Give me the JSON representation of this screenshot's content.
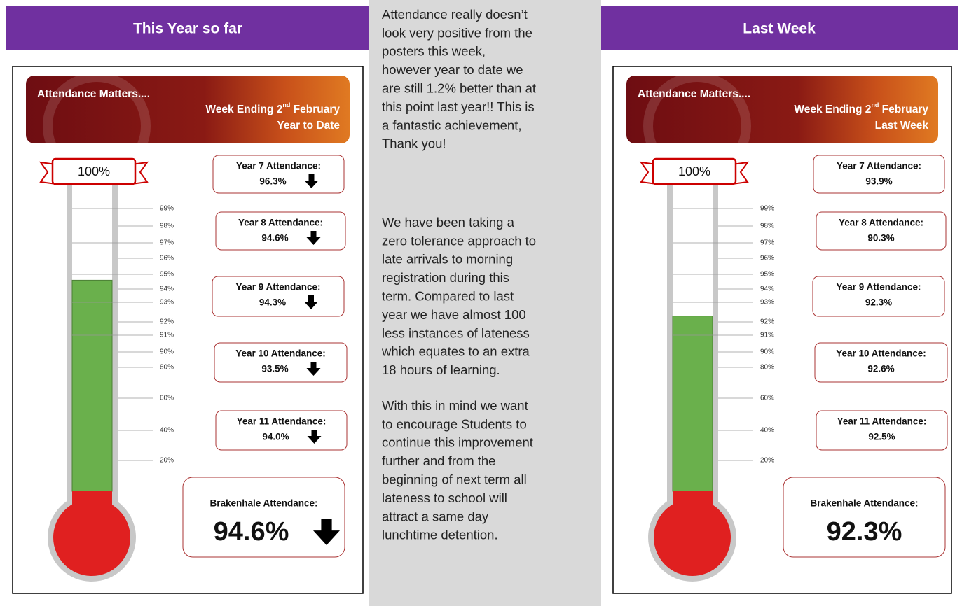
{
  "left_header": "This Year so far",
  "right_header": "Last Week",
  "article": {
    "paragraphs": [
      [
        "Attendance really doesn’t",
        "look very positive from the",
        "posters this week,",
        "however year to date we",
        "are still 1.2% better than at",
        "this point last year!!  This is",
        "a fantastic achievement,",
        "Thank you!"
      ],
      [
        "We have been taking a",
        "zero tolerance approach to",
        "late arrivals to morning",
        "registration during this",
        "term. Compared to last",
        "year we have almost 100",
        "less instances of lateness",
        "which equates to an extra",
        "18 hours of learning."
      ],
      [
        "With this in mind we want",
        "to encourage Students to",
        "continue this improvement",
        "further and from the",
        "beginning of next term all",
        "lateness to school will",
        "attract a same day",
        "lunchtime detention."
      ]
    ]
  },
  "posters": [
    {
      "banner": {
        "title": "Attendance Matters....",
        "week_ending": {
          "prefix": "Week Ending 2",
          "sup": "nd",
          "suffix": " February"
        },
        "period": "Year to Date"
      },
      "thermometer": {
        "top_label": "100%",
        "ticks": [
          {
            "value": 99,
            "label": "99%"
          },
          {
            "value": 98,
            "label": "98%"
          },
          {
            "value": 97,
            "label": "97%"
          },
          {
            "value": 96,
            "label": "96%"
          },
          {
            "value": 95,
            "label": "95%"
          },
          {
            "value": 94,
            "label": "94%"
          },
          {
            "value": 93,
            "label": "93%"
          },
          {
            "value": 92,
            "label": "92%"
          },
          {
            "value": 91,
            "label": "91%"
          },
          {
            "value": 90,
            "label": "90%"
          },
          {
            "value": 80,
            "label": "80%"
          },
          {
            "value": 60,
            "label": "60%"
          },
          {
            "value": 40,
            "label": "40%"
          },
          {
            "value": 20,
            "label": "20%"
          }
        ]
      },
      "arrows": true,
      "years": [
        {
          "label": "Year 7 Attendance:",
          "value": 96.3,
          "value_label": "96.3%"
        },
        {
          "label": "Year 8 Attendance:",
          "value": 94.6,
          "value_label": "94.6%"
        },
        {
          "label": "Year 9 Attendance:",
          "value": 94.3,
          "value_label": "94.3%"
        },
        {
          "label": "Year 10 Attendance:",
          "value": 93.5,
          "value_label": "93.5%"
        },
        {
          "label": "Year 11 Attendance:",
          "value": 94.0,
          "value_label": "94.0%"
        }
      ],
      "overall": {
        "label": "Brakenhale Attendance:",
        "value": 94.6,
        "value_label": "94.6%"
      }
    },
    {
      "banner": {
        "title": "Attendance Matters....",
        "week_ending": {
          "prefix": "Week Ending 2",
          "sup": "nd",
          "suffix": " February"
        },
        "period": "Last Week"
      },
      "thermometer": {
        "top_label": "100%",
        "ticks": [
          {
            "value": 99,
            "label": "99%"
          },
          {
            "value": 98,
            "label": "98%"
          },
          {
            "value": 97,
            "label": "97%"
          },
          {
            "value": 96,
            "label": "96%"
          },
          {
            "value": 95,
            "label": "95%"
          },
          {
            "value": 94,
            "label": "94%"
          },
          {
            "value": 93,
            "label": "93%"
          },
          {
            "value": 92,
            "label": "92%"
          },
          {
            "value": 91,
            "label": "91%"
          },
          {
            "value": 90,
            "label": "90%"
          },
          {
            "value": 80,
            "label": "80%"
          },
          {
            "value": 60,
            "label": "60%"
          },
          {
            "value": 40,
            "label": "40%"
          },
          {
            "value": 20,
            "label": "20%"
          }
        ]
      },
      "arrows": false,
      "years": [
        {
          "label": "Year 7 Attendance:",
          "value": 93.9,
          "value_label": "93.9%"
        },
        {
          "label": "Year 8 Attendance:",
          "value": 90.3,
          "value_label": "90.3%"
        },
        {
          "label": "Year 9 Attendance:",
          "value": 92.3,
          "value_label": "92.3%"
        },
        {
          "label": "Year 10 Attendance:",
          "value": 92.6,
          "value_label": "92.6%"
        },
        {
          "label": "Year 11 Attendance:",
          "value": 92.5,
          "value_label": "92.5%"
        }
      ],
      "overall": {
        "label": "Brakenhale Attendance:",
        "value": 92.3,
        "value_label": "92.3%"
      }
    }
  ]
}
